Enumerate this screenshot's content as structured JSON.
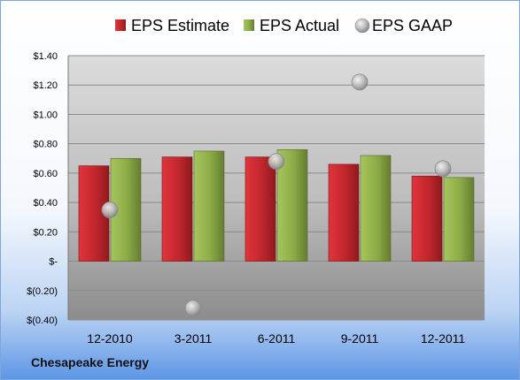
{
  "company": "Chesapeake Energy",
  "colors": {
    "estimate": "#c0262c",
    "actual": "#8cab47",
    "gaap": "#a8a8a8"
  },
  "chart_data": {
    "type": "bar",
    "categories": [
      "12-2010",
      "3-2011",
      "6-2011",
      "9-2011",
      "12-2011"
    ],
    "series": [
      {
        "name": "EPS Estimate",
        "kind": "bar",
        "values": [
          0.65,
          0.71,
          0.71,
          0.66,
          0.58
        ]
      },
      {
        "name": "EPS Actual",
        "kind": "bar",
        "values": [
          0.7,
          0.75,
          0.76,
          0.72,
          0.57
        ]
      },
      {
        "name": "EPS GAAP",
        "kind": "marker",
        "values": [
          0.35,
          -0.32,
          0.68,
          1.22,
          0.63
        ]
      }
    ],
    "ylim": [
      -0.4,
      1.4
    ],
    "yticks": [
      1.4,
      1.2,
      1.0,
      0.8,
      0.6,
      0.4,
      0.2,
      0.0,
      -0.2,
      -0.4
    ],
    "ytick_labels": [
      "$1.40",
      "$1.20",
      "$1.00",
      "$0.80",
      "$0.60",
      "$0.40",
      "$0.20",
      "$-",
      "$(0.20)",
      "$(0.40)"
    ],
    "legend": "top",
    "grid": true
  }
}
